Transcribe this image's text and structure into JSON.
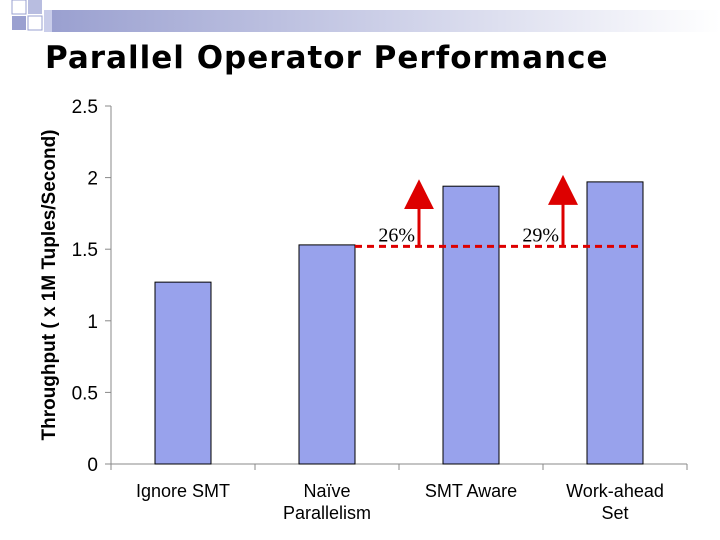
{
  "slide": {
    "title": "Parallel Operator Performance"
  },
  "colors": {
    "bar": "#98A2EC",
    "arrow": "#DD0000",
    "bar_stroke": "#000000"
  },
  "chart_data": {
    "type": "bar",
    "title": "",
    "xlabel": "",
    "ylabel": "Throughput ( x 1M Tuples/Second)",
    "ylim": [
      0,
      2.5
    ],
    "yticks": [
      "0",
      "0.5",
      "1",
      "1.5",
      "2",
      "2.5"
    ],
    "categories": [
      [
        "Ignore SMT"
      ],
      [
        "Naïve",
        "Parallelism"
      ],
      [
        "SMT Aware"
      ],
      [
        "Work-ahead",
        "Set"
      ]
    ],
    "values": [
      1.27,
      1.53,
      1.94,
      1.97
    ],
    "grid": false,
    "annotations": [
      {
        "label": "26%",
        "baseline": 1.52,
        "top": 1.94,
        "from_category": 1,
        "to_category": 2
      },
      {
        "label": "29%",
        "baseline": 1.52,
        "top": 1.97,
        "from_category": 2,
        "to_category": 3
      }
    ]
  }
}
